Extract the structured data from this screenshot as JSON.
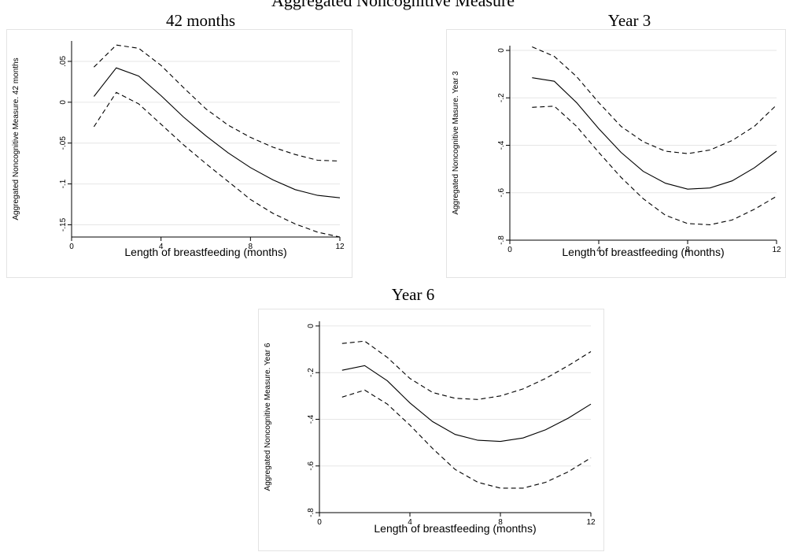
{
  "figure": {
    "main_title": "Aggregated Noncognitive Measure"
  },
  "chart_data": [
    {
      "type": "line",
      "title": "42 months",
      "xlabel": "Length of breastfeeding (months)",
      "ylabel": "Aggregated Noncognitive Measure. 42 months",
      "xlim": [
        0,
        12
      ],
      "ylim": [
        -0.165,
        0.075
      ],
      "x_ticks": [
        0,
        4,
        8,
        12
      ],
      "x_tick_labels": [
        "0",
        "4",
        "8",
        "12"
      ],
      "y_ticks": [
        0.05,
        0,
        -0.05,
        -0.1,
        -0.15
      ],
      "y_tick_labels": [
        ".05",
        "0",
        "-.05",
        "-.1",
        "-.15"
      ],
      "grid": true,
      "x": [
        1,
        2,
        3,
        4,
        5,
        6,
        7,
        8,
        9,
        10,
        11,
        12
      ],
      "series": [
        {
          "style": "dashed",
          "values": [
            0.043,
            0.07,
            0.066,
            0.045,
            0.018,
            -0.008,
            -0.028,
            -0.043,
            -0.055,
            -0.064,
            -0.071,
            -0.072
          ]
        },
        {
          "style": "solid",
          "values": [
            0.007,
            0.042,
            0.032,
            0.008,
            -0.018,
            -0.041,
            -0.062,
            -0.08,
            -0.095,
            -0.107,
            -0.114,
            -0.117
          ]
        },
        {
          "style": "dashed",
          "values": [
            -0.03,
            0.012,
            -0.002,
            -0.027,
            -0.052,
            -0.075,
            -0.097,
            -0.119,
            -0.136,
            -0.149,
            -0.159,
            -0.165
          ]
        }
      ]
    },
    {
      "type": "line",
      "title": "Year 3",
      "xlabel": "Length of breastfeeding (months)",
      "ylabel": "Aggregated Noncognitive Masure. Year 3",
      "xlim": [
        0,
        12
      ],
      "ylim": [
        -0.8,
        0.02
      ],
      "x_ticks": [
        0,
        4,
        8,
        12
      ],
      "x_tick_labels": [
        "0",
        "4",
        "8",
        "12"
      ],
      "y_ticks": [
        0,
        -0.2,
        -0.4,
        -0.6,
        -0.8
      ],
      "y_tick_labels": [
        "0",
        "-.2",
        "-.4",
        "-.6",
        "-.8"
      ],
      "grid": true,
      "x": [
        1,
        2,
        3,
        4,
        5,
        6,
        7,
        8,
        9,
        10,
        11,
        12
      ],
      "series": [
        {
          "style": "dashed",
          "values": [
            0.015,
            -0.025,
            -0.11,
            -0.22,
            -0.32,
            -0.385,
            -0.425,
            -0.435,
            -0.42,
            -0.38,
            -0.32,
            -0.23
          ]
        },
        {
          "style": "solid",
          "values": [
            -0.115,
            -0.13,
            -0.22,
            -0.33,
            -0.43,
            -0.51,
            -0.56,
            -0.585,
            -0.58,
            -0.55,
            -0.495,
            -0.425
          ]
        },
        {
          "style": "dashed",
          "values": [
            -0.24,
            -0.235,
            -0.32,
            -0.43,
            -0.535,
            -0.625,
            -0.695,
            -0.73,
            -0.735,
            -0.715,
            -0.67,
            -0.615
          ]
        }
      ]
    },
    {
      "type": "line",
      "title": "Year 6",
      "xlabel": "Length of breastfeeding (months)",
      "ylabel": "Aggregated Noncognitive Measure. Year 6",
      "xlim": [
        0,
        12
      ],
      "ylim": [
        -0.8,
        0.02
      ],
      "x_ticks": [
        0,
        4,
        8,
        12
      ],
      "x_tick_labels": [
        "0",
        "4",
        "8",
        "12"
      ],
      "y_ticks": [
        0,
        -0.2,
        -0.4,
        -0.6,
        -0.8
      ],
      "y_tick_labels": [
        "0",
        "-.2",
        "-.4",
        "-.6",
        "-.8"
      ],
      "grid": true,
      "x": [
        1,
        2,
        3,
        4,
        5,
        6,
        7,
        8,
        9,
        10,
        11,
        12
      ],
      "series": [
        {
          "style": "dashed",
          "values": [
            -0.075,
            -0.065,
            -0.135,
            -0.225,
            -0.285,
            -0.31,
            -0.315,
            -0.3,
            -0.27,
            -0.225,
            -0.17,
            -0.11
          ]
        },
        {
          "style": "solid",
          "values": [
            -0.19,
            -0.17,
            -0.235,
            -0.33,
            -0.41,
            -0.465,
            -0.49,
            -0.495,
            -0.48,
            -0.445,
            -0.395,
            -0.335
          ]
        },
        {
          "style": "dashed",
          "values": [
            -0.305,
            -0.275,
            -0.335,
            -0.425,
            -0.525,
            -0.615,
            -0.67,
            -0.695,
            -0.695,
            -0.67,
            -0.625,
            -0.565
          ]
        }
      ]
    }
  ]
}
